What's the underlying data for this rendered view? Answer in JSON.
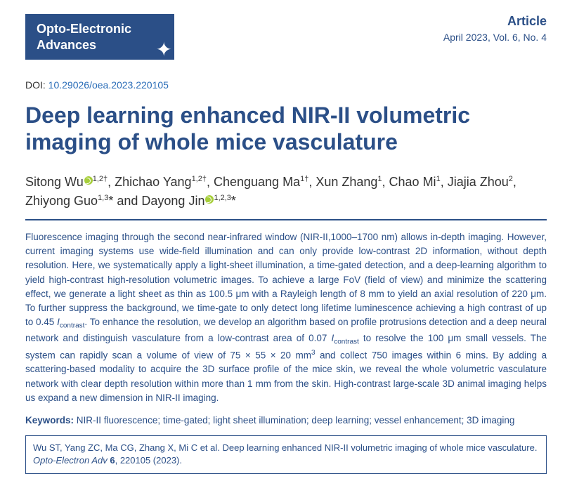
{
  "journal": {
    "name_line1": "Opto-Electronic",
    "name_line2": "Advances"
  },
  "header": {
    "article_label": "Article",
    "issue": "April 2023, Vol. 6, No. 4"
  },
  "doi": {
    "prefix": "DOI: ",
    "value": "10.29026/oea.2023.220105"
  },
  "title": "Deep learning enhanced NIR-II volumetric imaging of whole mice vasculature",
  "authors_html": "Sitong Wu<span class=\"orcid\" data-name=\"orcid-icon\" data-interactable=\"false\"></span><sup>1,2†</sup>, Zhichao Yang<sup>1,2†</sup>, Chenguang Ma<sup>1†</sup>, Xun Zhang<sup>1</sup>, Chao Mi<sup>1</sup>, Jiajia Zhou<sup>2</sup>, Zhiyong Guo<sup>1,3</sup>* and Dayong Jin<span class=\"orcid\" data-name=\"orcid-icon\" data-interactable=\"false\"></span><sup>1,2,3</sup>*",
  "abstract_html": "Fluorescence imaging through the second near-infrared window (NIR-II,1000–1700 nm) allows in-depth imaging. However, current imaging systems use wide-field illumination and can only provide low-contrast 2D information, without depth resolution. Here, we systematically apply a light-sheet illumination, a time-gated detection, and a deep-learning algorithm to yield high-contrast high-resolution volumetric images. To achieve a large FoV (field of view) and minimize the scattering effect, we generate a light sheet as thin as 100.5 μm with a Rayleigh length of 8 mm to yield an axial resolution of 220 μm. To further suppress the background, we time-gate to only detect long lifetime luminescence achieving a high contrast of up to 0.45 <span class=\"ital\">I</span><sub>contrast</sub>. To enhance the resolution, we develop an algorithm based on profile protrusions detection and a deep neural network and distinguish vasculature from a low-contrast area of 0.07 <span class=\"ital\">I</span><sub>contrast</sub> to resolve the 100 μm small vessels. The system can rapidly scan a volume of view of 75 × 55 × 20 mm<sup>3</sup> and collect 750 images within 6 mins. By adding a scattering-based modality to acquire the 3D surface profile of the mice skin, we reveal the whole volumetric vasculature network with clear depth resolution within more than 1 mm from the skin. High-contrast large-scale 3D animal imaging helps us expand a new dimension in NIR-II imaging.",
  "keywords": {
    "label": "Keywords:",
    "text": " NIR-II fluorescence; time-gated; light sheet illumination; deep learning; vessel enhancement; 3D imaging"
  },
  "citation_html": "Wu ST, Yang ZC, Ma CG, Zhang X, Mi C et al. Deep learning enhanced NIR-II volumetric imaging of whole mice vasculature. <span class=\"ital\">Opto-Electron Adv</span> <b>6</b>, 220105 (2023)."
}
